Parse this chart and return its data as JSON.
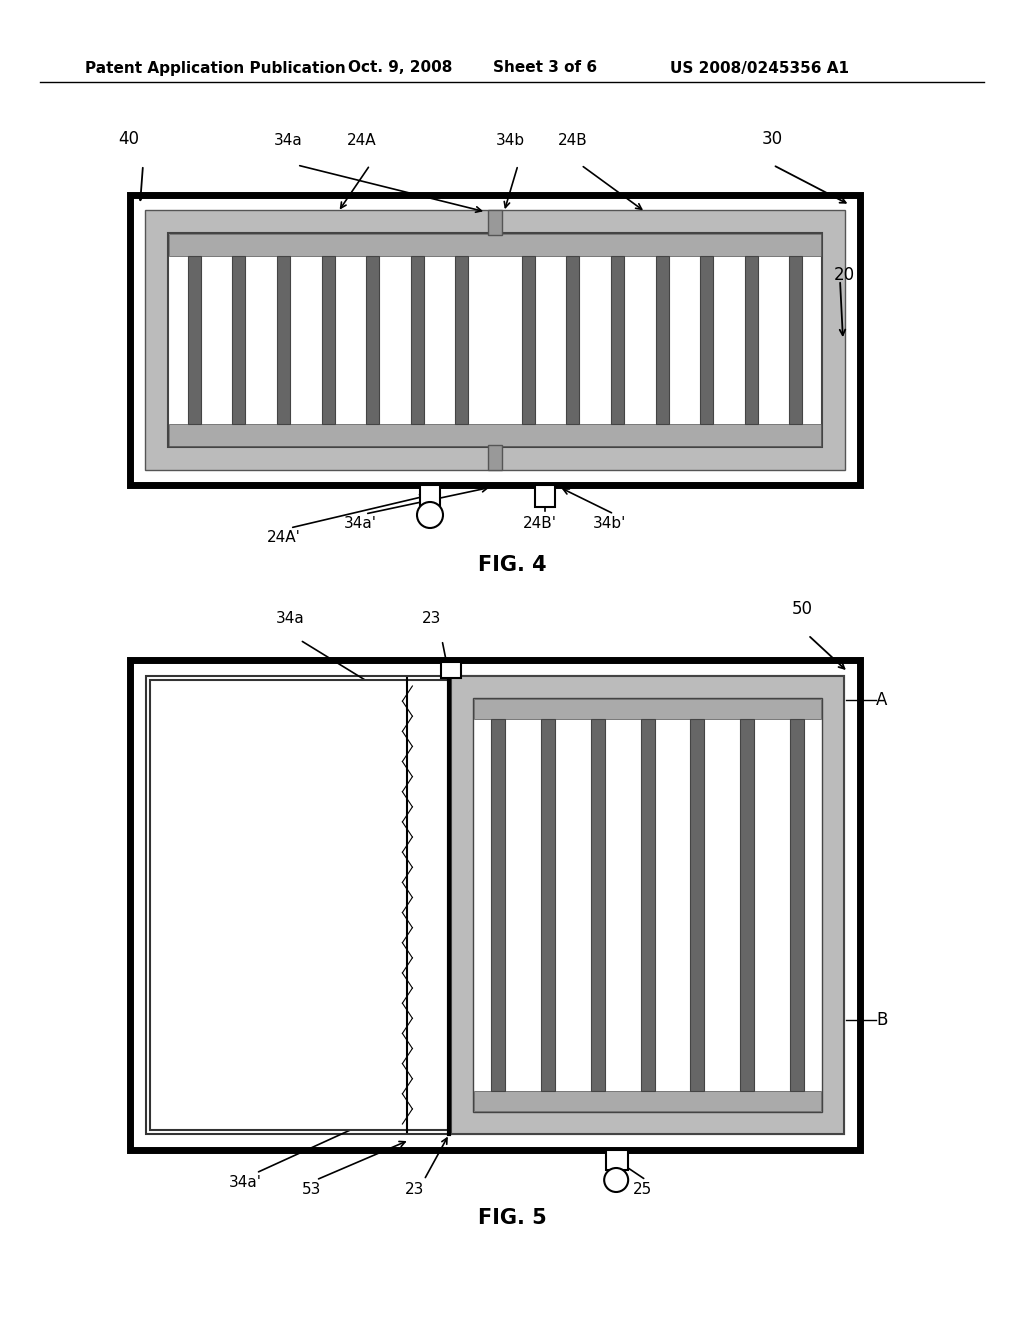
{
  "bg_color": "#ffffff",
  "header": {
    "text1": "Patent Application Publication",
    "text2": "Oct. 9, 2008",
    "text3": "Sheet 3 of 6",
    "text4": "US 2008/0245356 A1"
  },
  "fig4_label": "FIG. 4",
  "fig5_label": "FIG. 5",
  "gray_frame": "#bbbbbb",
  "gray_bar": "#aaaaaa",
  "dark_bar": "#666666",
  "bar_fill": "#999999"
}
